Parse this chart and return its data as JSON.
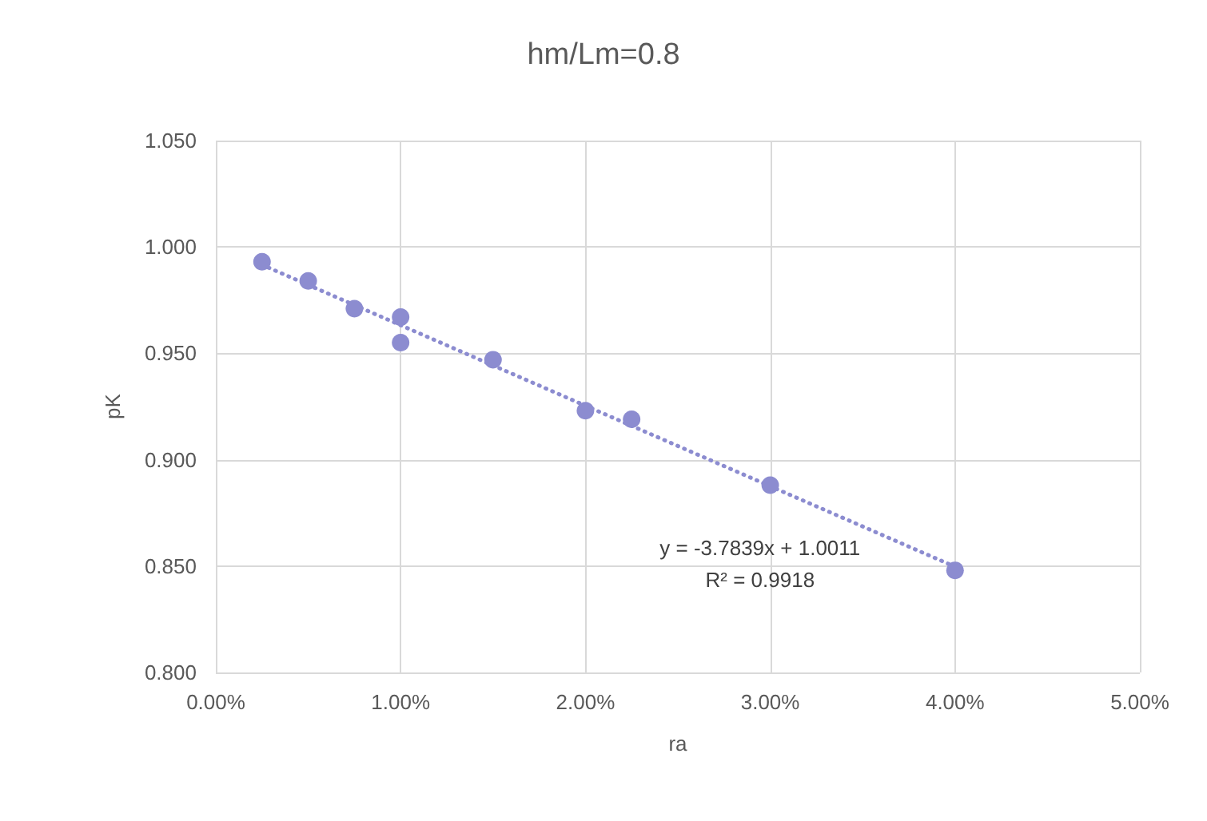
{
  "chart_data": {
    "type": "scatter",
    "title": "hm/Lm=0.8",
    "xlabel": "ra",
    "ylabel": "pK",
    "series": [
      {
        "color": "#8c8cd0",
        "x": [
          0.0025,
          0.005,
          0.0075,
          0.01,
          0.01,
          0.015,
          0.02,
          0.0225,
          0.03,
          0.04
        ],
        "values": [
          0.993,
          0.984,
          0.971,
          0.967,
          0.955,
          0.947,
          0.923,
          0.919,
          0.888,
          0.848
        ]
      },
      {
        "type": "line",
        "color": "#8c8cd0",
        "line_style": "dotted",
        "marker": "none",
        "x": [
          0.0025,
          0.04
        ],
        "values": [
          0.9916,
          0.8497
        ]
      }
    ],
    "xlim": [
      0,
      0.05
    ],
    "xticks": [
      {
        "value": 0,
        "label": "0.00%"
      },
      {
        "value": 0.01,
        "label": "1.00%"
      },
      {
        "value": 0.02,
        "label": "2.00%"
      },
      {
        "value": 0.03,
        "label": "3.00%"
      },
      {
        "value": 0.04,
        "label": "4.00%"
      },
      {
        "value": 0.05,
        "label": "5.00%"
      }
    ],
    "ylim": [
      0.8,
      1.05
    ],
    "yticks": [
      {
        "value": 0.8,
        "label": "0.800"
      },
      {
        "value": 0.85,
        "label": "0.850"
      },
      {
        "value": 0.9,
        "label": "0.900"
      },
      {
        "value": 0.95,
        "label": "0.950"
      },
      {
        "value": 1,
        "label": "1.000"
      },
      {
        "value": 1.05,
        "label": "1.050"
      }
    ],
    "grid": true,
    "marker": "circle",
    "annotations": [
      "y = -3.7839x + 1.0011",
      "R² = 0.9918"
    ]
  }
}
